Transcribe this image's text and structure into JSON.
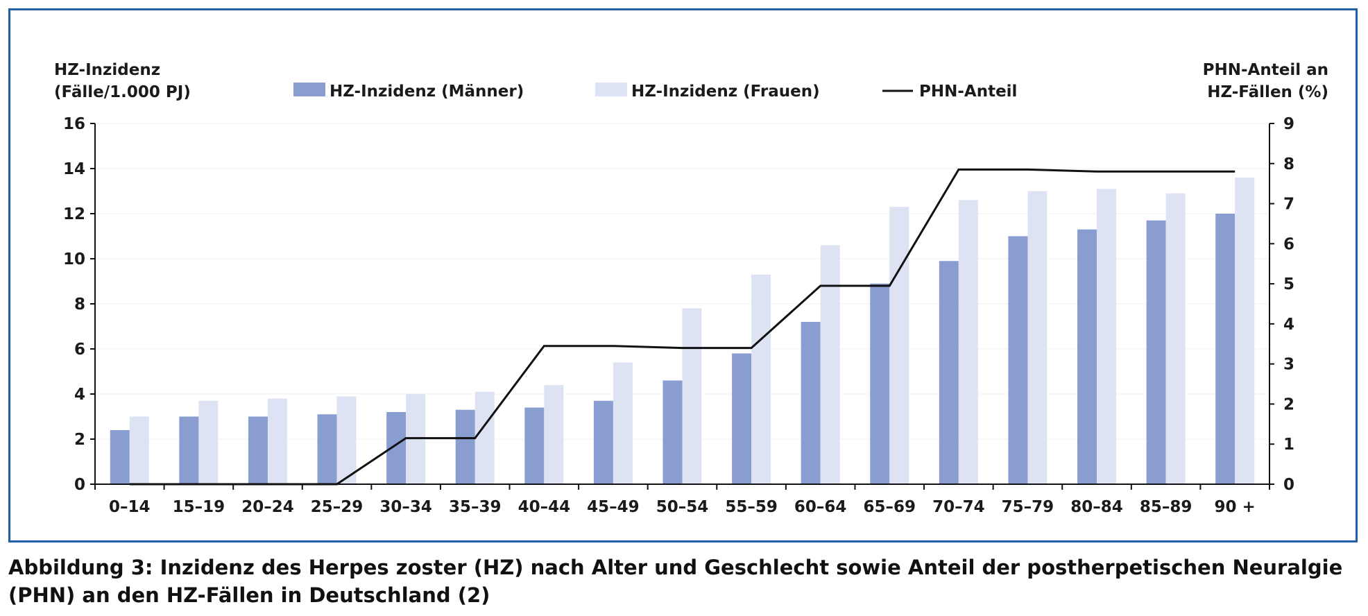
{
  "caption": "Abbildung 3: Inzidenz des Herpes zoster (HZ) nach Alter und Geschlecht sowie Anteil der postherpetischen Neuralgie (PHN) an den HZ-Fällen in Deutschland (2)",
  "colors": {
    "frame": "#1f5fa8",
    "men": "#8a9dd0",
    "women": "#dde3f3",
    "line": "#111111"
  },
  "chart_data": {
    "type": "bar",
    "ylabel_left": [
      "HZ-Inzidenz",
      "(Fälle/1.000 PJ)"
    ],
    "ylabel_right": [
      "PHN-Anteil an",
      "HZ-Fällen (%)"
    ],
    "ylim_left": [
      0,
      16
    ],
    "yticks_left": [
      "0",
      "2",
      "4",
      "6",
      "8",
      "10",
      "12",
      "14",
      "16"
    ],
    "ylim_right": [
      0,
      9
    ],
    "yticks_right": [
      "0",
      "1",
      "2",
      "3",
      "4",
      "5",
      "6",
      "7",
      "8",
      "9"
    ],
    "categories": [
      "0–14",
      "15–19",
      "20–24",
      "25–29",
      "30–34",
      "35–39",
      "40–44",
      "45–49",
      "50–54",
      "55–59",
      "60–64",
      "65–69",
      "70–74",
      "75–79",
      "80–84",
      "85–89",
      "90 +"
    ],
    "legend_position": "top",
    "series": [
      {
        "name": "HZ-Inzidenz (Männer)",
        "type": "bar",
        "axis": "left",
        "values": [
          2.4,
          3.0,
          3.0,
          3.1,
          3.2,
          3.3,
          3.4,
          3.7,
          4.6,
          5.8,
          7.2,
          8.9,
          9.9,
          11.0,
          11.3,
          11.7,
          12.0
        ]
      },
      {
        "name": "HZ-Inzidenz (Frauen)",
        "type": "bar",
        "axis": "left",
        "values": [
          3.0,
          3.7,
          3.8,
          3.9,
          4.0,
          4.1,
          4.4,
          5.4,
          7.8,
          9.3,
          10.6,
          12.3,
          12.6,
          13.0,
          13.1,
          12.9,
          13.6
        ]
      },
      {
        "name": "PHN-Anteil",
        "type": "line",
        "axis": "right",
        "values": [
          0.0,
          0.0,
          0.0,
          0.0,
          1.15,
          1.15,
          3.45,
          3.45,
          3.4,
          3.4,
          4.95,
          4.95,
          7.85,
          7.85,
          7.8,
          7.8,
          7.8
        ]
      }
    ]
  }
}
